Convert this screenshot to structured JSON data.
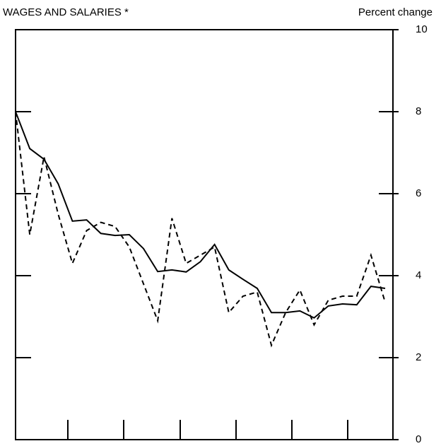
{
  "chart_data": {
    "type": "line",
    "title": "WAGES AND SALARIES *",
    "y_label": "Percent change",
    "categories": [
      null,
      null,
      null,
      null,
      null,
      null,
      null,
      null,
      null,
      null,
      null,
      null,
      null,
      null,
      null,
      null,
      null,
      null,
      null,
      null,
      null,
      null,
      null,
      null,
      null,
      null,
      null
    ],
    "series": [
      {
        "color": "#000000",
        "dash": false,
        "values": [
          8.0,
          7.1,
          6.84,
          6.24,
          5.33,
          5.36,
          5.03,
          4.98,
          5.0,
          4.66,
          4.1,
          4.14,
          4.09,
          4.34,
          4.76,
          4.14,
          3.91,
          3.69,
          3.1,
          3.1,
          3.14,
          2.97,
          3.26,
          3.31,
          3.29,
          3.74,
          3.69
        ]
      },
      {
        "color": "#000000",
        "dash": true,
        "values": [
          8.0,
          5.0,
          6.9,
          5.5,
          4.3,
          5.1,
          5.3,
          5.2,
          4.7,
          3.8,
          2.9,
          5.4,
          4.3,
          4.5,
          4.7,
          3.1,
          3.5,
          3.6,
          2.3,
          3.1,
          3.65,
          2.8,
          3.4,
          3.5,
          3.5,
          4.5,
          3.35
        ]
      }
    ],
    "ylim": [
      0,
      10
    ],
    "yticks": [
      0,
      2,
      4,
      6,
      8,
      10
    ]
  }
}
